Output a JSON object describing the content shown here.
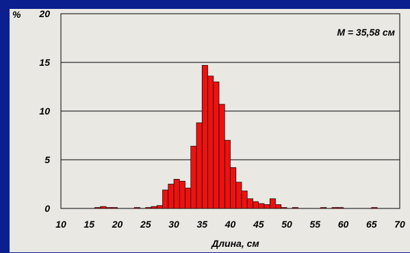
{
  "chart_data": {
    "type": "bar",
    "title": "",
    "xlabel": "Длина, см",
    "ylabel": "%",
    "annotation": "M = 35,58 см",
    "xlim": [
      10,
      70
    ],
    "ylim": [
      0,
      20
    ],
    "xticks": [
      "10",
      "15",
      "20",
      "25",
      "30",
      "35",
      "40",
      "45",
      "50",
      "55",
      "60",
      "65",
      "70"
    ],
    "yticks": [
      "0",
      "5",
      "10",
      "15",
      "20"
    ],
    "bin_width": 1,
    "grid": "horizontal",
    "colors": {
      "bar": "#ee1111",
      "bar_edge": "#000000",
      "panel": "#e9e8e3",
      "frame": "#0b1f8f"
    },
    "x": [
      16,
      17,
      18,
      19,
      23,
      25,
      26,
      27,
      28,
      29,
      30,
      31,
      32,
      33,
      34,
      35,
      36,
      37,
      38,
      39,
      40,
      41,
      42,
      43,
      44,
      45,
      46,
      47,
      48,
      49,
      51,
      56,
      58,
      59,
      65
    ],
    "values": [
      0.1,
      0.2,
      0.1,
      0.1,
      0.1,
      0.1,
      0.2,
      0.3,
      1.9,
      2.5,
      3.0,
      2.8,
      2.1,
      6.4,
      8.8,
      14.7,
      13.6,
      13.0,
      10.7,
      7.0,
      4.2,
      2.7,
      1.8,
      1.0,
      0.7,
      0.5,
      0.4,
      1.0,
      0.4,
      0.1,
      0.1,
      0.1,
      0.1,
      0.1,
      0.1
    ]
  }
}
